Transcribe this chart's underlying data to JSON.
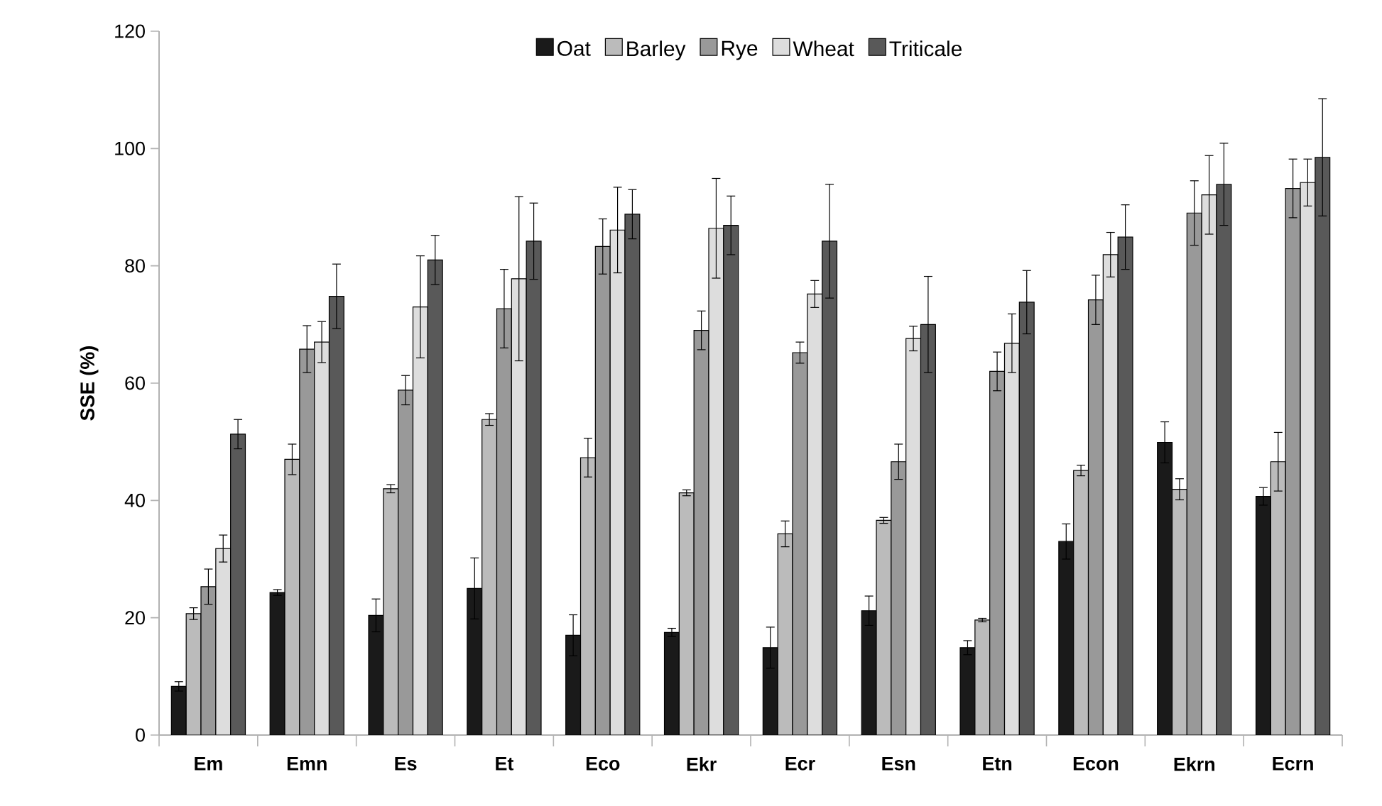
{
  "chart_data": {
    "type": "bar",
    "ylabel": "SSE (%)",
    "categories": [
      "Em",
      "Emn",
      "Es",
      "Et",
      "Eco",
      "Ekr",
      "Ecr",
      "Esn",
      "Etn",
      "Econ",
      "Ekrn",
      "Ecrn"
    ],
    "series": [
      {
        "name": "Oat",
        "color": "#1a1a1a",
        "values": [
          8.3,
          24.3,
          20.4,
          25,
          17,
          17.5,
          14.9,
          21.2,
          14.9,
          33,
          49.9,
          40.7
        ],
        "errors": [
          0.8,
          0.5,
          2.8,
          5.2,
          3.5,
          0.7,
          3.5,
          2.5,
          1.2,
          3,
          3.5,
          1.5
        ]
      },
      {
        "name": "Barley",
        "color": "#bbbbbb",
        "values": [
          20.7,
          47,
          42,
          53.8,
          47.3,
          41.3,
          34.3,
          36.6,
          19.6,
          45.1,
          41.9,
          46.6
        ],
        "errors": [
          1,
          2.6,
          0.7,
          1,
          3.3,
          0.5,
          2.2,
          0.5,
          0.3,
          0.9,
          1.8,
          5
        ]
      },
      {
        "name": "Rye",
        "color": "#999999",
        "values": [
          25.3,
          65.8,
          58.8,
          72.7,
          83.3,
          69,
          65.2,
          46.6,
          62,
          74.2,
          89,
          93.2
        ],
        "errors": [
          3,
          4,
          2.5,
          6.7,
          4.7,
          3.3,
          1.8,
          3,
          3.3,
          4.2,
          5.5,
          5
        ]
      },
      {
        "name": "Wheat",
        "color": "#dddddd",
        "values": [
          31.8,
          67,
          73,
          77.8,
          86.1,
          86.4,
          75.2,
          67.6,
          66.8,
          81.9,
          92.1,
          94.2
        ],
        "errors": [
          2.3,
          3.5,
          8.7,
          14,
          7.3,
          8.5,
          2.3,
          2.1,
          5,
          3.8,
          6.7,
          4
        ]
      },
      {
        "name": "Triticale",
        "color": "#595959",
        "values": [
          51.3,
          74.8,
          81,
          84.2,
          88.8,
          86.9,
          84.2,
          70,
          73.8,
          84.9,
          93.9,
          98.5
        ],
        "errors": [
          2.5,
          5.5,
          4.2,
          6.5,
          4.2,
          5,
          9.7,
          8.2,
          5.4,
          5.5,
          7,
          10
        ]
      }
    ],
    "ylim": [
      0,
      120
    ],
    "yticks": [
      0,
      20,
      40,
      60,
      80,
      100,
      120
    ],
    "grid": false,
    "legend": "top"
  }
}
